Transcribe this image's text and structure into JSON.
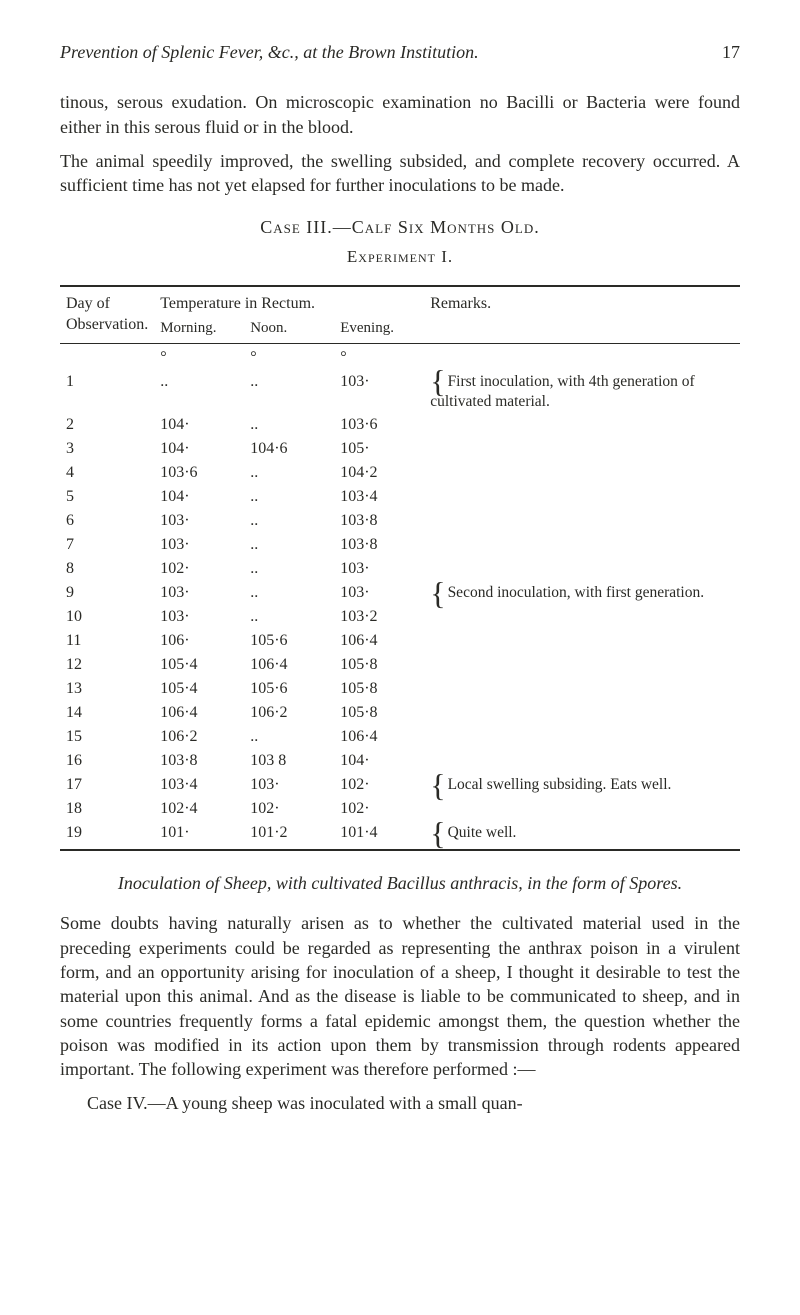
{
  "header": {
    "running_title": "Prevention of Splenic Fever, &c., at the Brown Institution.",
    "page_number": "17"
  },
  "paragraphs": {
    "p1": "tinous, serous exudation. On microscopic examination no Bacilli or Bacteria were found either in this serous fluid or in the blood.",
    "p2": "The animal speedily improved, the swelling subsided, and complete recovery occurred. A sufficient time has not yet elapsed for further inoculations to be made."
  },
  "case_heading": "Case III.—Calf Six Months Old.",
  "experiment_heading": "Experiment I.",
  "table": {
    "headers": {
      "day": "Day of Observation.",
      "temp": "Temperature in Rectum.",
      "morning": "Morning.",
      "noon": "Noon.",
      "evening": "Evening.",
      "remarks": "Remarks."
    },
    "degree": "°",
    "rows": [
      {
        "d": "1",
        "m": "..",
        "n": "..",
        "e": "103·",
        "r": "First inoculation, with 4th generation of cultivated material."
      },
      {
        "d": "2",
        "m": "104·",
        "n": "..",
        "e": "103·6",
        "r": ""
      },
      {
        "d": "3",
        "m": "104·",
        "n": "104·6",
        "e": "105·",
        "r": ""
      },
      {
        "d": "4",
        "m": "103·6",
        "n": "..",
        "e": "104·2",
        "r": ""
      },
      {
        "d": "5",
        "m": "104·",
        "n": "..",
        "e": "103·4",
        "r": ""
      },
      {
        "d": "6",
        "m": "103·",
        "n": "..",
        "e": "103·8",
        "r": ""
      },
      {
        "d": "7",
        "m": "103·",
        "n": "..",
        "e": "103·8",
        "r": ""
      },
      {
        "d": "8",
        "m": "102·",
        "n": "..",
        "e": "103·",
        "r": ""
      },
      {
        "d": "9",
        "m": "103·",
        "n": "..",
        "e": "103·",
        "r": "Second inoculation, with first generation."
      },
      {
        "d": "10",
        "m": "103·",
        "n": "..",
        "e": "103·2",
        "r": ""
      },
      {
        "d": "11",
        "m": "106·",
        "n": "105·6",
        "e": "106·4",
        "r": ""
      },
      {
        "d": "12",
        "m": "105·4",
        "n": "106·4",
        "e": "105·8",
        "r": ""
      },
      {
        "d": "13",
        "m": "105·4",
        "n": "105·6",
        "e": "105·8",
        "r": ""
      },
      {
        "d": "14",
        "m": "106·4",
        "n": "106·2",
        "e": "105·8",
        "r": ""
      },
      {
        "d": "15",
        "m": "106·2",
        "n": "..",
        "e": "106·4",
        "r": ""
      },
      {
        "d": "16",
        "m": "103·8",
        "n": "103 8",
        "e": "104·",
        "r": ""
      },
      {
        "d": "17",
        "m": "103·4",
        "n": "103·",
        "e": "102·",
        "r": "Local swelling subsiding. Eats well."
      },
      {
        "d": "18",
        "m": "102·4",
        "n": "102·",
        "e": "102·",
        "r": ""
      },
      {
        "d": "19",
        "m": "101·",
        "n": "101·2",
        "e": "101·4",
        "r": "Quite well."
      }
    ]
  },
  "inoc_heading": "Inoculation of Sheep, with cultivated Bacillus anthracis, in the form of Spores.",
  "paragraphs2": {
    "p3": "Some doubts having naturally arisen as to whether the cultivated material used in the preceding experiments could be regarded as representing the anthrax poison in a virulent form, and an opportunity arising for inoculation of a sheep, I thought it desirable to test the material upon this animal. And as the disease is liable to be communicated to sheep, and in some countries frequently forms a fatal epidemic amongst them, the question whether the poison was modified in its action upon them by transmission through rodents appeared important. The following experiment was therefore performed :—",
    "p4": "Case IV.—A young sheep was inoculated with a small quan-"
  }
}
